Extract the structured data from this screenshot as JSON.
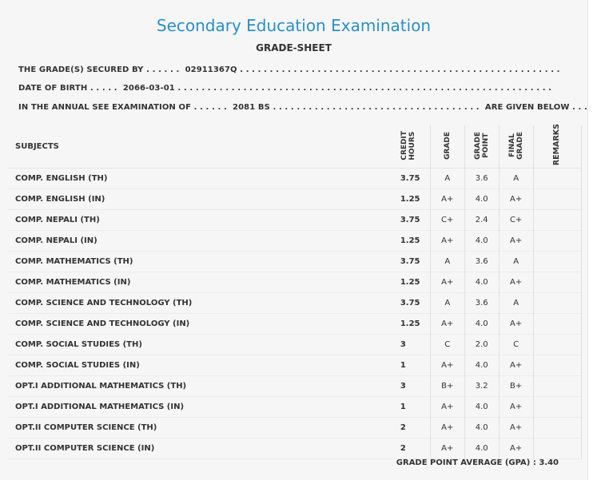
{
  "header": {
    "title": "Secondary Education Examination",
    "subtitle": "GRADE-SHEET"
  },
  "info": {
    "line1": "THE GRADE(S) SECURED BY . . . . . .  02911367Q . . . . . . . . . . . . . . . . . . . . . . . . . . . . . . . . . . . . . . . . . . . . . . . . . . . . . .",
    "line2": "DATE OF BIRTH . . . . .  2066-03-01 . . . . . . . . . . . . . . . . . . . . . . . . . . . . . . . . . . . . . . . . . . . . . . . . . . . . . . . . . . . . . . .",
    "line3": "IN THE ANNUAL SEE EXAMINATION OF . . . . . .  2081 BS . . . . . . . . . . . . . . . . . . . . . . . . . . . . . . . . . . .  ARE GIVEN BELOW . . ."
  },
  "table": {
    "headers": {
      "subjects": "SUBJECTS",
      "credit_hours": "CREDIT\nHOURS",
      "grade": "GRADE",
      "grade_point": "GRADE\nPOINT",
      "final_grade": "FINAL\nGRADE",
      "remarks": "REMARKS"
    },
    "rows": [
      {
        "subject": "COMP. ENGLISH (TH)",
        "credit": "3.75",
        "grade": "A",
        "point": "3.6",
        "final": "A",
        "remarks": ""
      },
      {
        "subject": "COMP. ENGLISH (IN)",
        "credit": "1.25",
        "grade": "A+",
        "point": "4.0",
        "final": "A+",
        "remarks": ""
      },
      {
        "subject": "COMP. NEPALI (TH)",
        "credit": "3.75",
        "grade": "C+",
        "point": "2.4",
        "final": "C+",
        "remarks": ""
      },
      {
        "subject": "COMP. NEPALI (IN)",
        "credit": "1.25",
        "grade": "A+",
        "point": "4.0",
        "final": "A+",
        "remarks": ""
      },
      {
        "subject": "COMP. MATHEMATICS (TH)",
        "credit": "3.75",
        "grade": "A",
        "point": "3.6",
        "final": "A",
        "remarks": ""
      },
      {
        "subject": "COMP. MATHEMATICS (IN)",
        "credit": "1.25",
        "grade": "A+",
        "point": "4.0",
        "final": "A+",
        "remarks": ""
      },
      {
        "subject": "COMP. SCIENCE AND TECHNOLOGY (TH)",
        "credit": "3.75",
        "grade": "A",
        "point": "3.6",
        "final": "A",
        "remarks": ""
      },
      {
        "subject": "COMP. SCIENCE AND TECHNOLOGY (IN)",
        "credit": "1.25",
        "grade": "A+",
        "point": "4.0",
        "final": "A+",
        "remarks": ""
      },
      {
        "subject": "COMP. SOCIAL STUDIES (TH)",
        "credit": "3",
        "grade": "C",
        "point": "2.0",
        "final": "C",
        "remarks": ""
      },
      {
        "subject": "COMP. SOCIAL STUDIES (IN)",
        "credit": "1",
        "grade": "A+",
        "point": "4.0",
        "final": "A+",
        "remarks": ""
      },
      {
        "subject": "OPT.I ADDITIONAL MATHEMATICS (TH)",
        "credit": "3",
        "grade": "B+",
        "point": "3.2",
        "final": "B+",
        "remarks": ""
      },
      {
        "subject": "OPT.I ADDITIONAL MATHEMATICS (IN)",
        "credit": "1",
        "grade": "A+",
        "point": "4.0",
        "final": "A+",
        "remarks": ""
      },
      {
        "subject": "OPT.II COMPUTER SCIENCE (TH)",
        "credit": "2",
        "grade": "A+",
        "point": "4.0",
        "final": "A+",
        "remarks": ""
      },
      {
        "subject": "OPT.II COMPUTER SCIENCE (IN)",
        "credit": "2",
        "grade": "A+",
        "point": "4.0",
        "final": "A+",
        "remarks": ""
      }
    ]
  },
  "footer": {
    "gpa": "GRADE POINT AVERAGE (GPA) : 3.40"
  },
  "colors": {
    "title": "#2a8fc7",
    "background": "#f6f6f6"
  }
}
